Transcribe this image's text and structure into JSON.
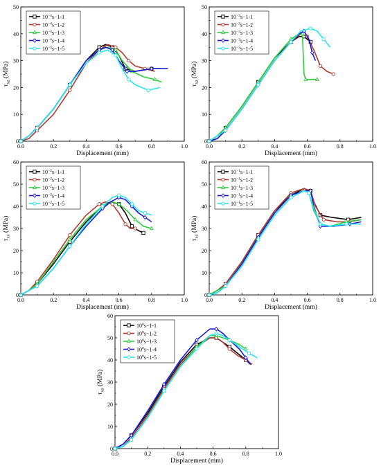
{
  "colors": {
    "s1": "#000000",
    "s2": "#b03a2e",
    "s3": "#2ecc40",
    "s4": "#1a1ad6",
    "s5": "#22e6f0"
  },
  "chart_data": [
    {
      "type": "line",
      "xlabel": "Displacement (mm)",
      "ylabel_main": "τ",
      "ylabel_sub": "xz",
      "ylabel_unit": " (MPa)",
      "xlim": [
        0,
        1.0
      ],
      "ylim": [
        0,
        50
      ],
      "xticks": [
        "0.0",
        "0.2",
        "0.4",
        "0.6",
        "0.8",
        "1.0"
      ],
      "yticks": [
        "0",
        "10",
        "20",
        "30",
        "40",
        "50"
      ],
      "legend_position": "top-left",
      "series": [
        {
          "name_base": "10",
          "name_exp": "−4",
          "name_suffix": "s−1-1",
          "x": [
            0,
            0.05,
            0.1,
            0.2,
            0.3,
            0.4,
            0.48,
            0.52,
            0.56,
            0.6,
            0.64,
            0.7,
            0.8,
            0.85
          ],
          "y": [
            0,
            2,
            5,
            12,
            21,
            30,
            35,
            36,
            35,
            32,
            27,
            26,
            27,
            27
          ]
        },
        {
          "name_base": "10",
          "name_exp": "−4",
          "name_suffix": "s−1-2",
          "x": [
            0,
            0.05,
            0.1,
            0.2,
            0.3,
            0.4,
            0.48,
            0.53,
            0.58,
            0.62,
            0.66,
            0.7,
            0.76,
            0.82
          ],
          "y": [
            0,
            1,
            4,
            10,
            19,
            29,
            34,
            36,
            35,
            33,
            30,
            28,
            27,
            26
          ]
        },
        {
          "name_base": "10",
          "name_exp": "−4",
          "name_suffix": "s−1-3",
          "x": [
            0,
            0.05,
            0.1,
            0.2,
            0.3,
            0.4,
            0.48,
            0.53,
            0.58,
            0.62,
            0.68,
            0.75,
            0.82,
            0.86
          ],
          "y": [
            0,
            2,
            5,
            12,
            21,
            30,
            34,
            35,
            34,
            30,
            26,
            24,
            23,
            22
          ]
        },
        {
          "name_base": "10",
          "name_exp": "−4",
          "name_suffix": "s−1-4",
          "x": [
            0,
            0.05,
            0.1,
            0.2,
            0.3,
            0.4,
            0.48,
            0.52,
            0.56,
            0.6,
            0.65,
            0.7,
            0.8,
            0.9
          ],
          "y": [
            0,
            2,
            5,
            12,
            21,
            30,
            34,
            35,
            34,
            30,
            26,
            26,
            27,
            27
          ]
        },
        {
          "name_base": "10",
          "name_exp": "−4",
          "name_suffix": "s−1-5",
          "x": [
            0,
            0.05,
            0.1,
            0.2,
            0.3,
            0.4,
            0.48,
            0.53,
            0.58,
            0.62,
            0.66,
            0.7,
            0.78,
            0.85
          ],
          "y": [
            0,
            2,
            5,
            12,
            21,
            29,
            33,
            34,
            32,
            27,
            23,
            21,
            19,
            20
          ]
        }
      ]
    },
    {
      "type": "line",
      "xlabel": "Displacement (mm)",
      "ylabel_main": "τ",
      "ylabel_sub": "xz",
      "ylabel_unit": " (MPa)",
      "xlim": [
        0,
        1.0
      ],
      "ylim": [
        0,
        50
      ],
      "xticks": [
        "0.0",
        "0.2",
        "0.4",
        "0.6",
        "0.8",
        "1.0"
      ],
      "yticks": [
        "0",
        "10",
        "20",
        "30",
        "40",
        "50"
      ],
      "legend_position": "top-left",
      "series": [
        {
          "name_base": "10",
          "name_exp": "−3",
          "name_suffix": "s−1-1",
          "x": [
            0,
            0.05,
            0.1,
            0.2,
            0.3,
            0.4,
            0.5,
            0.55,
            0.58,
            0.6,
            0.62
          ],
          "y": [
            0,
            2,
            5,
            13,
            22,
            31,
            37,
            39,
            39,
            38,
            37
          ]
        },
        {
          "name_base": "10",
          "name_exp": "−3",
          "name_suffix": "s−1-2",
          "x": [
            0,
            0.05,
            0.1,
            0.2,
            0.3,
            0.4,
            0.5,
            0.56,
            0.6,
            0.64,
            0.68,
            0.72,
            0.76
          ],
          "y": [
            0,
            1,
            4,
            12,
            21,
            30,
            37,
            40,
            39,
            34,
            28,
            26,
            25
          ]
        },
        {
          "name_base": "10",
          "name_exp": "−3",
          "name_suffix": "s−1-3",
          "x": [
            0,
            0.05,
            0.1,
            0.2,
            0.3,
            0.4,
            0.5,
            0.55,
            0.57,
            0.58,
            0.59,
            0.62,
            0.66
          ],
          "y": [
            0,
            2,
            5,
            13,
            22,
            31,
            38,
            40,
            40,
            25,
            23,
            23,
            23
          ]
        },
        {
          "name_base": "10",
          "name_exp": "−3",
          "name_suffix": "s−1-4",
          "x": [
            0,
            0.05,
            0.1,
            0.2,
            0.3,
            0.4,
            0.5,
            0.55,
            0.58,
            0.61,
            0.63,
            0.65
          ],
          "y": [
            0,
            1,
            4,
            12,
            21,
            30,
            37,
            40,
            41,
            38,
            33,
            30
          ]
        },
        {
          "name_base": "10",
          "name_exp": "−3",
          "name_suffix": "s−1-5",
          "x": [
            0,
            0.05,
            0.1,
            0.2,
            0.3,
            0.4,
            0.5,
            0.56,
            0.62,
            0.66,
            0.7,
            0.74
          ],
          "y": [
            0,
            2,
            4,
            12,
            21,
            30,
            37,
            41,
            42,
            41,
            38,
            35
          ]
        }
      ]
    },
    {
      "type": "line",
      "xlabel": "Displacement (mm)",
      "ylabel_main": "τ",
      "ylabel_sub": "xz",
      "ylabel_unit": " (MPa)",
      "xlim": [
        0,
        1.0
      ],
      "ylim": [
        0,
        60
      ],
      "xticks": [
        "0.0",
        "0.2",
        "0.4",
        "0.6",
        "0.8",
        "1.0"
      ],
      "yticks": [
        "0",
        "10",
        "20",
        "30",
        "40",
        "50",
        "60"
      ],
      "legend_position": "top-left",
      "series": [
        {
          "name_base": "10",
          "name_exp": "−2",
          "name_suffix": "s−1-1",
          "x": [
            0,
            0.05,
            0.1,
            0.2,
            0.3,
            0.4,
            0.5,
            0.55,
            0.6,
            0.64,
            0.68,
            0.72,
            0.75
          ],
          "y": [
            0,
            2,
            5,
            14,
            24,
            33,
            40,
            42,
            41,
            37,
            31,
            29,
            28
          ]
        },
        {
          "name_base": "10",
          "name_exp": "−2",
          "name_suffix": "s−1-2",
          "x": [
            0,
            0.05,
            0.1,
            0.2,
            0.3,
            0.4,
            0.48,
            0.52,
            0.56,
            0.6,
            0.64,
            0.67,
            0.7
          ],
          "y": [
            0,
            2,
            6,
            16,
            27,
            36,
            41,
            42,
            41,
            37,
            32,
            30,
            30
          ]
        },
        {
          "name_base": "10",
          "name_exp": "−2",
          "name_suffix": "s−1-3",
          "x": [
            0,
            0.05,
            0.1,
            0.2,
            0.3,
            0.4,
            0.5,
            0.56,
            0.6,
            0.65,
            0.7,
            0.75,
            0.8
          ],
          "y": [
            0,
            2,
            5,
            15,
            25,
            34,
            40,
            42,
            41,
            38,
            34,
            31,
            30
          ]
        },
        {
          "name_base": "10",
          "name_exp": "−2",
          "name_suffix": "s−1-4",
          "x": [
            0,
            0.05,
            0.1,
            0.2,
            0.3,
            0.4,
            0.5,
            0.55,
            0.6,
            0.64,
            0.68,
            0.72,
            0.76,
            0.8
          ],
          "y": [
            0,
            2,
            4,
            12,
            22,
            31,
            39,
            42,
            44,
            43,
            40,
            37,
            35,
            33
          ]
        },
        {
          "name_base": "10",
          "name_exp": "−2",
          "name_suffix": "s−1-5",
          "x": [
            0,
            0.05,
            0.1,
            0.2,
            0.3,
            0.4,
            0.5,
            0.56,
            0.6,
            0.64,
            0.68,
            0.72,
            0.76,
            0.8
          ],
          "y": [
            0,
            2,
            4,
            12,
            22,
            32,
            40,
            44,
            45,
            44,
            41,
            38,
            37,
            36
          ]
        }
      ]
    },
    {
      "type": "line",
      "xlabel": "Displacement (mm)",
      "ylabel_main": "τ",
      "ylabel_sub": "xz",
      "ylabel_unit": " (MPa)",
      "xlim": [
        0,
        1.0
      ],
      "ylim": [
        0,
        60
      ],
      "xticks": [
        "0.0",
        "0.2",
        "0.4",
        "0.6",
        "0.8",
        "1.0"
      ],
      "yticks": [
        "0",
        "10",
        "20",
        "30",
        "40",
        "50",
        "60"
      ],
      "legend_position": "top-left",
      "series": [
        {
          "name_base": "10",
          "name_exp": "−1",
          "name_suffix": "s−1-1",
          "x": [
            0,
            0.05,
            0.1,
            0.2,
            0.3,
            0.4,
            0.5,
            0.58,
            0.62,
            0.64,
            0.68,
            0.75,
            0.85,
            0.93
          ],
          "y": [
            0,
            2,
            5,
            15,
            27,
            38,
            45,
            48,
            47,
            42,
            36,
            35,
            34,
            35
          ]
        },
        {
          "name_base": "10",
          "name_exp": "−1",
          "name_suffix": "s−1-2",
          "x": [
            0,
            0.05,
            0.1,
            0.2,
            0.3,
            0.4,
            0.5,
            0.58,
            0.62,
            0.65,
            0.7,
            0.78,
            0.86,
            0.93
          ],
          "y": [
            0,
            2,
            5,
            15,
            27,
            38,
            46,
            48,
            47,
            40,
            34,
            33,
            33,
            34
          ]
        },
        {
          "name_base": "10",
          "name_exp": "−1",
          "name_suffix": "s−1-3",
          "x": [
            0,
            0.05,
            0.1,
            0.2,
            0.3,
            0.4,
            0.5,
            0.58,
            0.61,
            0.64,
            0.68,
            0.74,
            0.84,
            0.93
          ],
          "y": [
            0,
            2,
            4,
            14,
            26,
            37,
            45,
            47,
            46,
            38,
            32,
            31,
            33,
            34
          ]
        },
        {
          "name_base": "10",
          "name_exp": "−1",
          "name_suffix": "s−1-4",
          "x": [
            0,
            0.05,
            0.1,
            0.2,
            0.3,
            0.4,
            0.5,
            0.58,
            0.62,
            0.64,
            0.68,
            0.76,
            0.86,
            0.93
          ],
          "y": [
            0,
            1,
            4,
            14,
            26,
            37,
            45,
            47,
            47,
            40,
            31,
            31,
            32,
            33
          ]
        },
        {
          "name_base": "10",
          "name_exp": "−1",
          "name_suffix": "s−1-5",
          "x": [
            0,
            0.05,
            0.1,
            0.2,
            0.3,
            0.4,
            0.5,
            0.58,
            0.61,
            0.64,
            0.68,
            0.74,
            0.84,
            0.93
          ],
          "y": [
            0,
            1,
            4,
            13,
            25,
            36,
            44,
            47,
            46,
            39,
            32,
            31,
            32,
            32
          ]
        }
      ]
    },
    {
      "type": "line",
      "xlabel": "Displacement (mm)",
      "ylabel_main": "τ",
      "ylabel_sub": "xz",
      "ylabel_unit": " (MPa)",
      "xlim": [
        0,
        1.0
      ],
      "ylim": [
        0,
        60
      ],
      "xticks": [
        "0.0",
        "0.2",
        "0.4",
        "0.6",
        "0.8",
        "1.0"
      ],
      "yticks": [
        "0",
        "10",
        "20",
        "30",
        "40",
        "50",
        "60"
      ],
      "legend_position": "top-left",
      "series": [
        {
          "name_base": "10",
          "name_exp": "0",
          "name_suffix": "s−1-1",
          "x": [
            0,
            0.05,
            0.1,
            0.2,
            0.3,
            0.4,
            0.5,
            0.58,
            0.62,
            0.66,
            0.7,
            0.75,
            0.8,
            0.83
          ],
          "y": [
            0,
            2,
            6,
            16,
            28,
            39,
            47,
            50,
            50,
            48,
            46,
            43,
            40,
            38
          ]
        },
        {
          "name_base": "10",
          "name_exp": "0",
          "name_suffix": "s−1-2",
          "x": [
            0,
            0.05,
            0.1,
            0.2,
            0.3,
            0.4,
            0.5,
            0.58,
            0.62,
            0.66,
            0.7,
            0.75,
            0.8,
            0.84
          ],
          "y": [
            0,
            1,
            5,
            15,
            27,
            38,
            46,
            50,
            50,
            48,
            45,
            42,
            40,
            38
          ]
        },
        {
          "name_base": "10",
          "name_exp": "0",
          "name_suffix": "s−1-3",
          "x": [
            0,
            0.05,
            0.1,
            0.2,
            0.3,
            0.4,
            0.5,
            0.58,
            0.62,
            0.66,
            0.7,
            0.76,
            0.8
          ],
          "y": [
            0,
            1,
            4,
            14,
            26,
            37,
            46,
            51,
            51,
            50,
            49,
            47,
            45
          ]
        },
        {
          "name_base": "10",
          "name_exp": "0",
          "name_suffix": "s−1-4",
          "x": [
            0,
            0.05,
            0.1,
            0.2,
            0.3,
            0.4,
            0.5,
            0.58,
            0.62,
            0.66,
            0.7,
            0.76,
            0.8,
            0.83
          ],
          "y": [
            0,
            2,
            6,
            17,
            29,
            40,
            49,
            54,
            54,
            52,
            49,
            45,
            41,
            38
          ]
        },
        {
          "name_base": "10",
          "name_exp": "0",
          "name_suffix": "s−1-5",
          "x": [
            0,
            0.05,
            0.1,
            0.2,
            0.3,
            0.4,
            0.5,
            0.58,
            0.62,
            0.66,
            0.7,
            0.76,
            0.82,
            0.87
          ],
          "y": [
            0,
            1,
            4,
            14,
            26,
            37,
            45,
            51,
            52,
            51,
            49,
            46,
            43,
            41
          ]
        }
      ]
    }
  ]
}
